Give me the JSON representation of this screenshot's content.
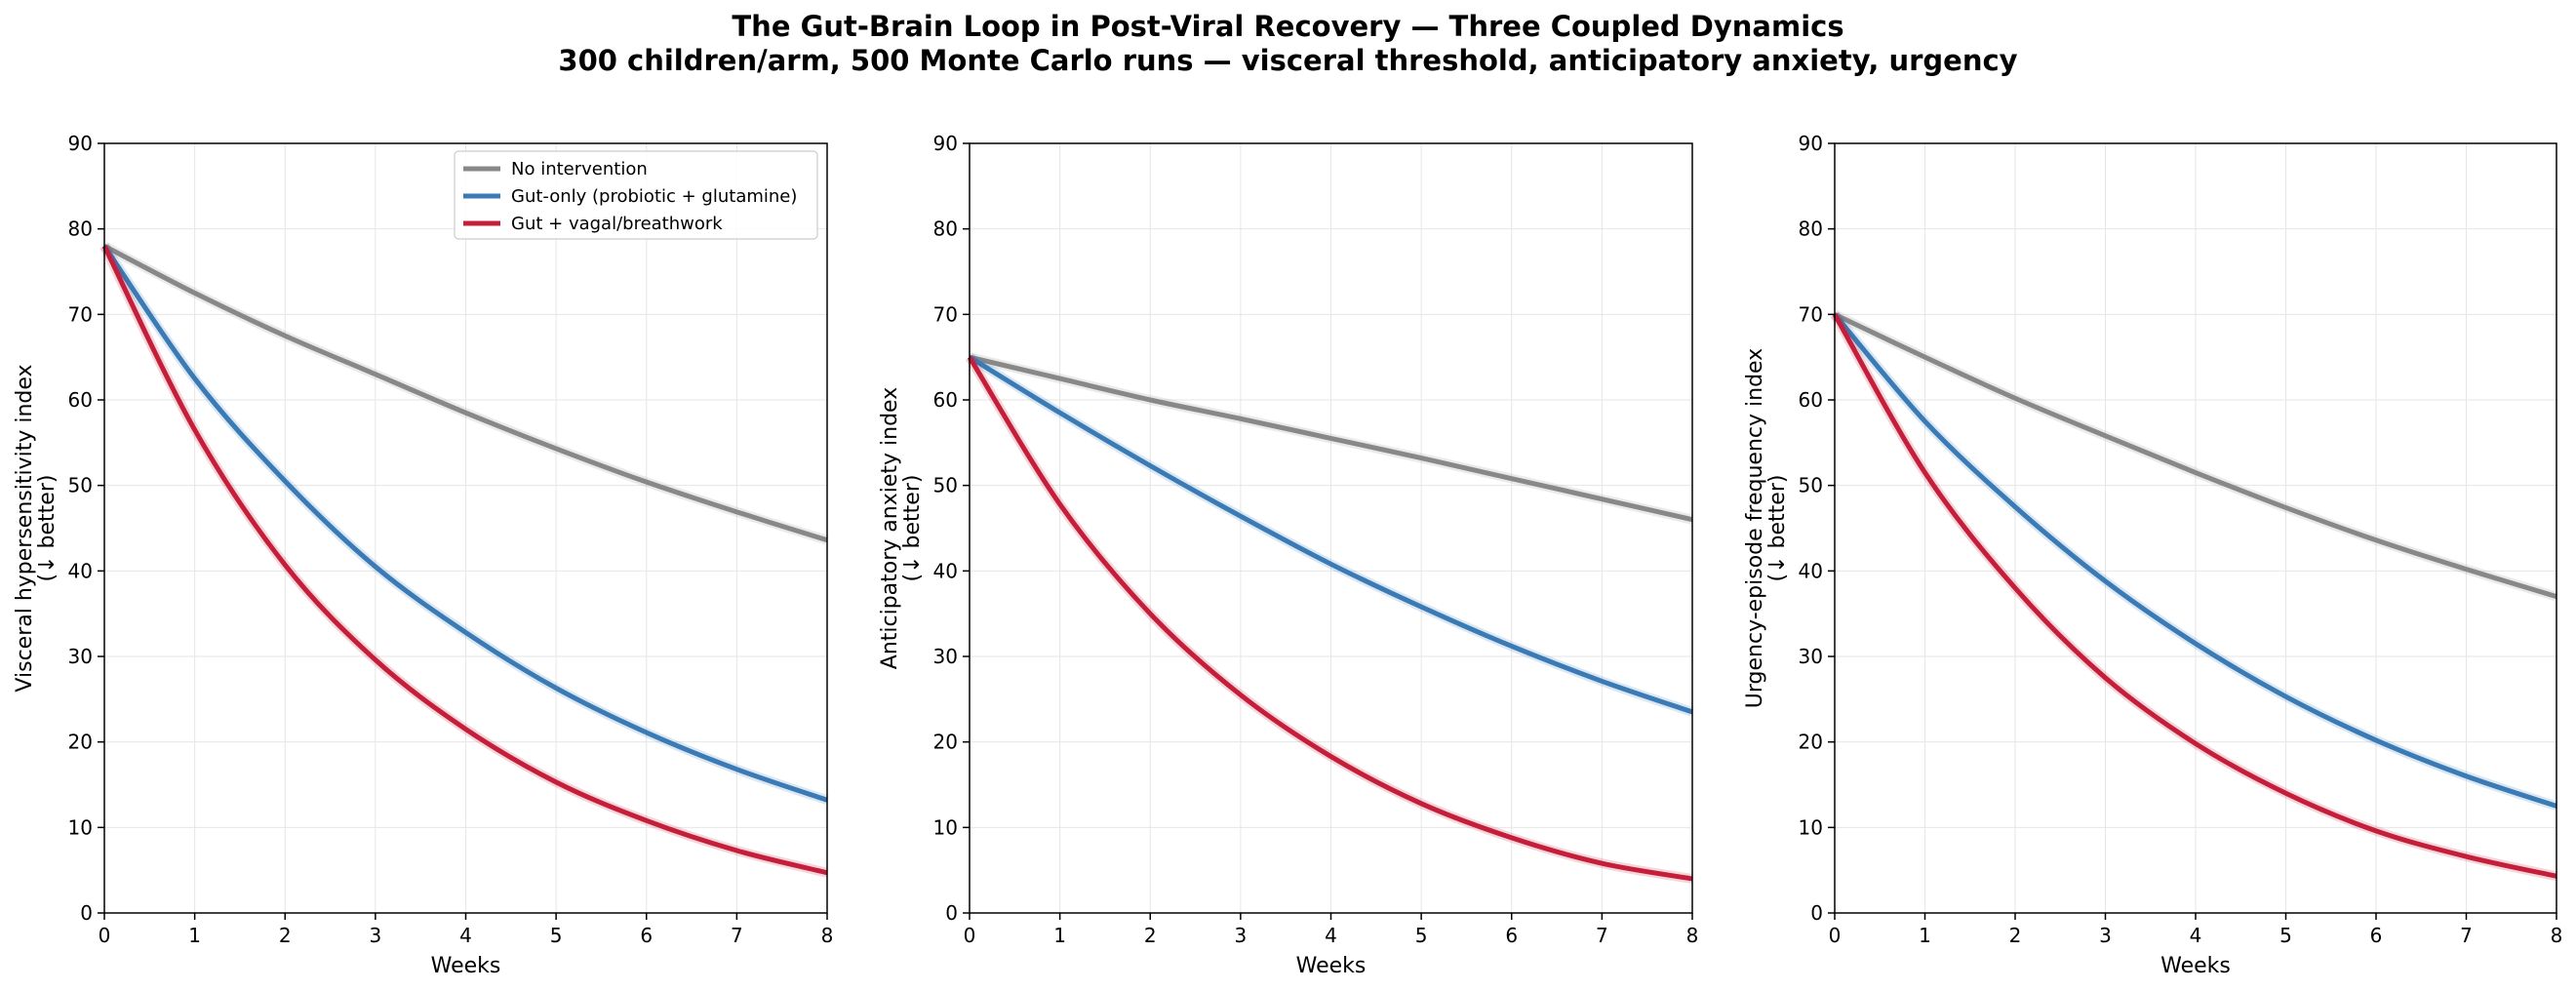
{
  "figure": {
    "title_line1": "The Gut-Brain Loop in Post-Viral Recovery — Three Coupled Dynamics",
    "title_line2": "300 children/arm, 500 Monte Carlo runs — visceral threshold, anticipatory anxiety, urgency"
  },
  "colors": {
    "no_intervention": "#888888",
    "gut_only": "#3a7ab5",
    "gut_vagal": "#c41e3a",
    "grid": "#e6e6e6"
  },
  "legend": {
    "placement": "upper right of first panel",
    "entries": [
      "No intervention",
      "Gut-only (probiotic + glutamine)",
      "Gut + vagal/breathwork"
    ]
  },
  "chart_data": [
    {
      "type": "line",
      "xlabel": "Weeks",
      "ylabel_line1": "Visceral hypersensitivity index",
      "ylabel_line2": "(↓ better)",
      "xlim": [
        0,
        8
      ],
      "ylim": [
        0,
        90
      ],
      "xticks": [
        "0",
        "1",
        "2",
        "3",
        "4",
        "5",
        "6",
        "7",
        "8"
      ],
      "yticks": [
        "0",
        "10",
        "20",
        "30",
        "40",
        "50",
        "60",
        "70",
        "80",
        "90"
      ],
      "grid": true,
      "x": [
        0,
        1,
        2,
        3,
        4,
        5,
        6,
        7,
        8
      ],
      "series": [
        {
          "name": "No intervention",
          "values": [
            78,
            72.5,
            67.5,
            63,
            58.5,
            54.3,
            50.4,
            46.9,
            43.6
          ]
        },
        {
          "name": "Gut-only (probiotic + glutamine)",
          "values": [
            78,
            62.5,
            50.5,
            40.5,
            32.8,
            26.3,
            21.1,
            16.8,
            13.2
          ]
        },
        {
          "name": "Gut + vagal/breathwork",
          "values": [
            78,
            56.5,
            40.7,
            29.6,
            21.5,
            15.3,
            10.8,
            7.3,
            4.7
          ]
        }
      ]
    },
    {
      "type": "line",
      "xlabel": "Weeks",
      "ylabel_line1": "Anticipatory anxiety index",
      "ylabel_line2": "(↓ better)",
      "xlim": [
        0,
        8
      ],
      "ylim": [
        0,
        90
      ],
      "xticks": [
        "0",
        "1",
        "2",
        "3",
        "4",
        "5",
        "6",
        "7",
        "8"
      ],
      "yticks": [
        "0",
        "10",
        "20",
        "30",
        "40",
        "50",
        "60",
        "70",
        "80",
        "90"
      ],
      "grid": true,
      "x": [
        0,
        1,
        2,
        3,
        4,
        5,
        6,
        7,
        8
      ],
      "series": [
        {
          "name": "No intervention",
          "values": [
            65,
            62.5,
            60,
            57.8,
            55.5,
            53.2,
            50.8,
            48.4,
            46
          ]
        },
        {
          "name": "Gut-only (probiotic + glutamine)",
          "values": [
            65,
            58.5,
            52.3,
            46.4,
            40.8,
            35.8,
            31.2,
            27.1,
            23.5
          ]
        },
        {
          "name": "Gut + vagal/breathwork",
          "values": [
            65,
            47.8,
            35,
            25.5,
            18.3,
            12.8,
            8.8,
            5.8,
            4
          ]
        }
      ]
    },
    {
      "type": "line",
      "xlabel": "Weeks",
      "ylabel_line1": "Urgency-episode frequency index",
      "ylabel_line2": "(↓ better)",
      "xlim": [
        0,
        8
      ],
      "ylim": [
        0,
        90
      ],
      "xticks": [
        "0",
        "1",
        "2",
        "3",
        "4",
        "5",
        "6",
        "7",
        "8"
      ],
      "yticks": [
        "0",
        "10",
        "20",
        "30",
        "40",
        "50",
        "60",
        "70",
        "80",
        "90"
      ],
      "grid": true,
      "x": [
        0,
        1,
        2,
        3,
        4,
        5,
        6,
        7,
        8
      ],
      "series": [
        {
          "name": "No intervention",
          "values": [
            70,
            65,
            60.2,
            55.8,
            51.5,
            47.4,
            43.6,
            40.2,
            37
          ]
        },
        {
          "name": "Gut-only (probiotic + glutamine)",
          "values": [
            70,
            57.5,
            47.5,
            38.8,
            31.5,
            25.3,
            20.2,
            16,
            12.5
          ]
        },
        {
          "name": "Gut + vagal/breathwork",
          "values": [
            70,
            51.5,
            38,
            27.5,
            19.8,
            14,
            9.6,
            6.6,
            4.3
          ]
        }
      ]
    }
  ]
}
